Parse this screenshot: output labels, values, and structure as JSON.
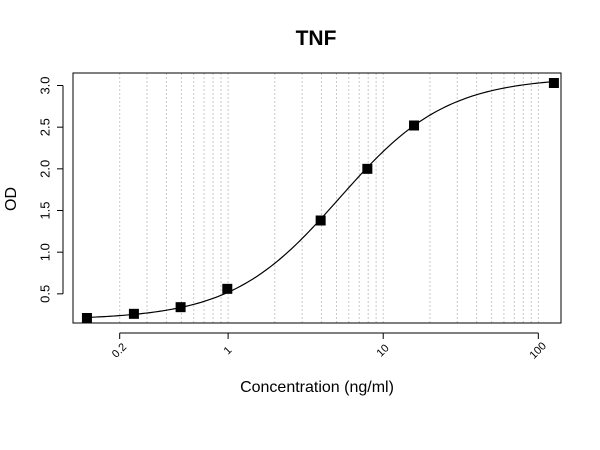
{
  "chart_data": {
    "type": "scatter",
    "title": "TNF",
    "xlabel": "Concentration (ng/ml)",
    "ylabel": "OD",
    "x_scale": "log",
    "xlim": [
      0.1,
      140
    ],
    "ylim": [
      0.15,
      3.15
    ],
    "x_tick_values": [
      0.2,
      1,
      10,
      100
    ],
    "x_tick_labels": [
      "0.2",
      "1",
      "10",
      "100"
    ],
    "y_tick_values": [
      0.5,
      1.0,
      1.5,
      2.0,
      2.5,
      3.0
    ],
    "y_tick_labels": [
      "0.5",
      "1.0",
      "1.5",
      "2.0",
      "2.5",
      "3.0"
    ],
    "grid": "vertical dotted lines at log minor ticks",
    "points": {
      "x": [
        0.123,
        0.247,
        0.494,
        0.988,
        3.95,
        7.9,
        15.8,
        126
      ],
      "y": [
        0.21,
        0.26,
        0.34,
        0.56,
        1.38,
        2.0,
        2.52,
        3.03
      ]
    },
    "fit_curve": {
      "model": "4PL",
      "bottom": 0.19,
      "top": 3.1,
      "ec50": 5.2,
      "hill": 1.25
    },
    "colors": {
      "points": "#000000",
      "curve": "#000000",
      "grid": "#c8c8c8"
    }
  }
}
